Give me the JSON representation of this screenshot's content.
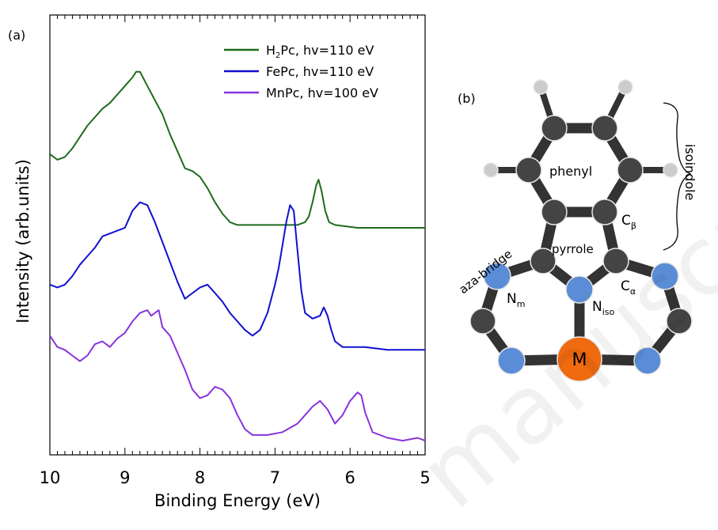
{
  "chart_data": [
    {
      "panel": "(a)",
      "type": "line",
      "xlabel": "Binding Energy (eV)",
      "ylabel": "Intensity (arb.units)",
      "xlim": [
        10,
        5
      ],
      "x_ticks": [
        "10",
        "9",
        "8",
        "7",
        "6",
        "5"
      ],
      "grid": false,
      "legend_position": "top-right",
      "series": [
        {
          "name": "H₂Pc, hv=110 eV",
          "legend_main": "H",
          "legend_sub": "2",
          "legend_rest": "Pc, hv=110 eV",
          "color": "#1e6b1e",
          "points": [
            [
              10,
              0.86
            ],
            [
              9.9,
              0.84
            ],
            [
              9.8,
              0.85
            ],
            [
              9.7,
              0.88
            ],
            [
              9.6,
              0.92
            ],
            [
              9.5,
              0.96
            ],
            [
              9.4,
              0.99
            ],
            [
              9.3,
              1.02
            ],
            [
              9.2,
              1.04
            ],
            [
              9.1,
              1.07
            ],
            [
              9,
              1.1
            ],
            [
              8.9,
              1.13
            ],
            [
              8.85,
              1.15
            ],
            [
              8.8,
              1.15
            ],
            [
              8.7,
              1.1
            ],
            [
              8.6,
              1.05
            ],
            [
              8.5,
              1.0
            ],
            [
              8.4,
              0.93
            ],
            [
              8.3,
              0.87
            ],
            [
              8.2,
              0.81
            ],
            [
              8.1,
              0.8
            ],
            [
              8,
              0.78
            ],
            [
              7.9,
              0.74
            ],
            [
              7.8,
              0.69
            ],
            [
              7.7,
              0.65
            ],
            [
              7.6,
              0.62
            ],
            [
              7.5,
              0.61
            ],
            [
              7.2,
              0.61
            ],
            [
              6.9,
              0.61
            ],
            [
              6.7,
              0.61
            ],
            [
              6.6,
              0.62
            ],
            [
              6.55,
              0.64
            ],
            [
              6.5,
              0.69
            ],
            [
              6.45,
              0.75
            ],
            [
              6.42,
              0.77
            ],
            [
              6.38,
              0.73
            ],
            [
              6.33,
              0.66
            ],
            [
              6.28,
              0.62
            ],
            [
              6.2,
              0.61
            ],
            [
              5.9,
              0.6
            ],
            [
              5.5,
              0.6
            ],
            [
              5,
              0.6
            ]
          ]
        },
        {
          "name": "FePc, hv=110 eV",
          "legend_main": "FePc, hv=110 eV",
          "legend_sub": "",
          "legend_rest": "",
          "color": "#1010d0",
          "points": [
            [
              10,
              0.4
            ],
            [
              9.9,
              0.39
            ],
            [
              9.8,
              0.4
            ],
            [
              9.7,
              0.43
            ],
            [
              9.6,
              0.47
            ],
            [
              9.5,
              0.5
            ],
            [
              9.4,
              0.53
            ],
            [
              9.3,
              0.57
            ],
            [
              9.2,
              0.58
            ],
            [
              9.1,
              0.59
            ],
            [
              9,
              0.6
            ],
            [
              8.95,
              0.63
            ],
            [
              8.9,
              0.66
            ],
            [
              8.8,
              0.69
            ],
            [
              8.7,
              0.68
            ],
            [
              8.6,
              0.62
            ],
            [
              8.5,
              0.55
            ],
            [
              8.4,
              0.48
            ],
            [
              8.3,
              0.41
            ],
            [
              8.2,
              0.35
            ],
            [
              8.1,
              0.37
            ],
            [
              8.0,
              0.39
            ],
            [
              7.9,
              0.4
            ],
            [
              7.8,
              0.37
            ],
            [
              7.7,
              0.34
            ],
            [
              7.6,
              0.3
            ],
            [
              7.5,
              0.27
            ],
            [
              7.4,
              0.24
            ],
            [
              7.3,
              0.22
            ],
            [
              7.2,
              0.24
            ],
            [
              7.1,
              0.3
            ],
            [
              7.0,
              0.4
            ],
            [
              6.95,
              0.46
            ],
            [
              6.9,
              0.54
            ],
            [
              6.85,
              0.62
            ],
            [
              6.8,
              0.68
            ],
            [
              6.75,
              0.66
            ],
            [
              6.7,
              0.52
            ],
            [
              6.65,
              0.38
            ],
            [
              6.6,
              0.3
            ],
            [
              6.5,
              0.28
            ],
            [
              6.4,
              0.29
            ],
            [
              6.35,
              0.32
            ],
            [
              6.3,
              0.29
            ],
            [
              6.25,
              0.24
            ],
            [
              6.2,
              0.2
            ],
            [
              6.1,
              0.18
            ],
            [
              5.8,
              0.18
            ],
            [
              5.5,
              0.17
            ],
            [
              5,
              0.17
            ]
          ]
        },
        {
          "name": "MnPc, hv=100 eV",
          "legend_main": "MnPc, hv=100 eV",
          "legend_sub": "",
          "legend_rest": "",
          "color": "#8833dd",
          "points": [
            [
              10,
              0.22
            ],
            [
              9.9,
              0.18
            ],
            [
              9.8,
              0.17
            ],
            [
              9.7,
              0.15
            ],
            [
              9.6,
              0.13
            ],
            [
              9.5,
              0.15
            ],
            [
              9.4,
              0.19
            ],
            [
              9.3,
              0.2
            ],
            [
              9.2,
              0.18
            ],
            [
              9.1,
              0.21
            ],
            [
              9.0,
              0.23
            ],
            [
              8.9,
              0.27
            ],
            [
              8.8,
              0.3
            ],
            [
              8.7,
              0.31
            ],
            [
              8.65,
              0.29
            ],
            [
              8.55,
              0.31
            ],
            [
              8.5,
              0.25
            ],
            [
              8.4,
              0.22
            ],
            [
              8.3,
              0.16
            ],
            [
              8.2,
              0.1
            ],
            [
              8.1,
              0.03
            ],
            [
              8.0,
              0.0
            ],
            [
              7.9,
              0.01
            ],
            [
              7.8,
              0.04
            ],
            [
              7.7,
              0.03
            ],
            [
              7.6,
              0.0
            ],
            [
              7.5,
              -0.06
            ],
            [
              7.4,
              -0.11
            ],
            [
              7.3,
              -0.13
            ],
            [
              7.1,
              -0.13
            ],
            [
              6.9,
              -0.12
            ],
            [
              6.7,
              -0.09
            ],
            [
              6.6,
              -0.06
            ],
            [
              6.5,
              -0.03
            ],
            [
              6.4,
              -0.01
            ],
            [
              6.3,
              -0.04
            ],
            [
              6.2,
              -0.09
            ],
            [
              6.1,
              -0.06
            ],
            [
              6.0,
              -0.01
            ],
            [
              5.9,
              0.02
            ],
            [
              5.85,
              0.01
            ],
            [
              5.8,
              -0.05
            ],
            [
              5.7,
              -0.12
            ],
            [
              5.5,
              -0.14
            ],
            [
              5.3,
              -0.15
            ],
            [
              5.1,
              -0.14
            ],
            [
              5,
              -0.15
            ]
          ]
        }
      ]
    },
    {
      "panel": "(b)",
      "type": "diagram",
      "labels": {
        "phenyl": "phenyl",
        "pyrrole": "pyrrole",
        "aza_bridge": "aza-bridge",
        "isoindole": "isoindole",
        "c_beta_main": "C",
        "c_beta_sub": "β",
        "c_alpha_main": "C",
        "c_alpha_sub": "α",
        "n_m_main": "N",
        "n_m_sub": "m",
        "n_iso_main": "N",
        "n_iso_sub": "iso",
        "metal": "M"
      },
      "colors": {
        "carbon": "#444444",
        "nitrogen": "#5b8dd6",
        "hydrogen": "#cccccc",
        "metal": "#f06a10",
        "bond": "#333333"
      }
    }
  ]
}
